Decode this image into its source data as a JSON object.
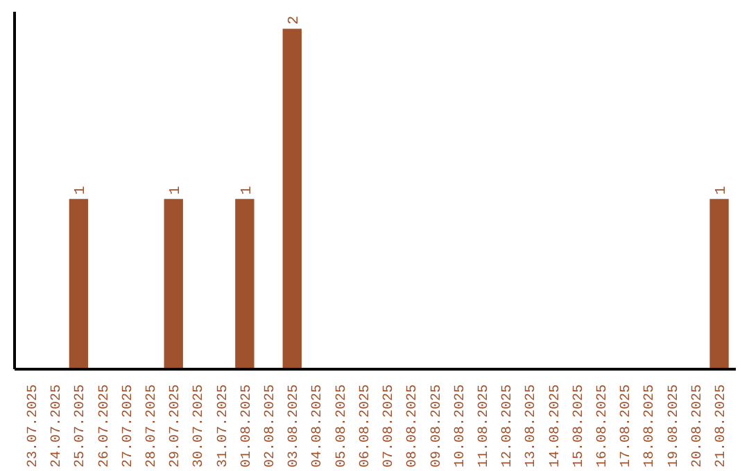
{
  "chart_data": {
    "type": "bar",
    "categories": [
      "23.07.2025",
      "24.07.2025",
      "25.07.2025",
      "26.07.2025",
      "27.07.2025",
      "28.07.2025",
      "29.07.2025",
      "30.07.2025",
      "31.07.2025",
      "01.08.2025",
      "02.08.2025",
      "03.08.2025",
      "04.08.2025",
      "05.08.2025",
      "06.08.2025",
      "07.08.2025",
      "08.08.2025",
      "09.08.2025",
      "10.08.2025",
      "11.08.2025",
      "12.08.2025",
      "13.08.2025",
      "14.08.2025",
      "15.08.2025",
      "16.08.2025",
      "17.08.2025",
      "18.08.2025",
      "19.08.2025",
      "20.08.2025",
      "21.08.2025"
    ],
    "values": [
      0,
      0,
      1,
      0,
      0,
      0,
      1,
      0,
      0,
      1,
      0,
      2,
      0,
      0,
      0,
      0,
      0,
      0,
      0,
      0,
      0,
      0,
      0,
      0,
      0,
      0,
      0,
      0,
      0,
      1
    ],
    "value_labels": [
      null,
      null,
      "1",
      null,
      null,
      null,
      "1",
      null,
      null,
      "1",
      null,
      "2",
      null,
      null,
      null,
      null,
      null,
      null,
      null,
      null,
      null,
      null,
      null,
      null,
      null,
      null,
      null,
      null,
      null,
      "1"
    ],
    "color": "#a0522d",
    "grid": false
  }
}
